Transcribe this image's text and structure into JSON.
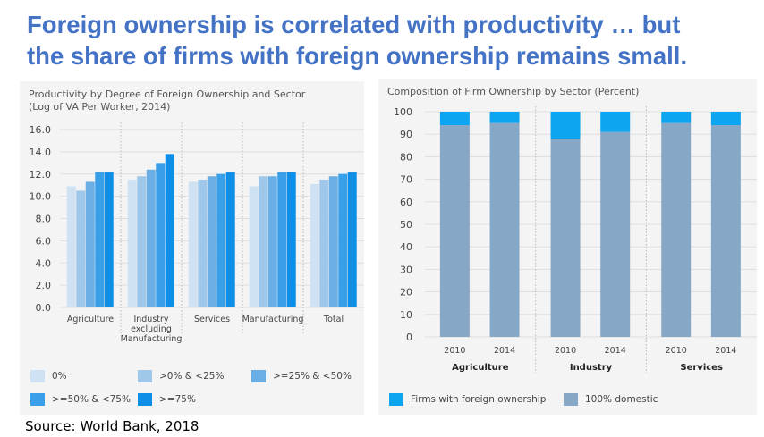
{
  "title": {
    "line1": "Foreign ownership is correlated with productivity … but",
    "line2": "the share of firms with foreign ownership remains small."
  },
  "source": "Source: World Bank, 2018",
  "chart_data": [
    {
      "type": "bar",
      "title_line1": "Productivity by Degree of Foreign Ownership and Sector",
      "title_line2": "(Log of VA Per Worker, 2014)",
      "categories": [
        "Agriculture",
        "Industry excluding Manufacturing",
        "Services",
        "Manufacturing",
        "Total"
      ],
      "category_label_lines": [
        [
          "Agriculture"
        ],
        [
          "Industry",
          "excluding",
          "Manufacturing"
        ],
        [
          "Services"
        ],
        [
          "Manufacturing"
        ],
        [
          "Total"
        ]
      ],
      "ylim": [
        0,
        16
      ],
      "yticks": [
        0,
        2,
        4,
        6,
        8,
        10,
        12,
        14,
        16
      ],
      "ytick_labels": [
        "0.0",
        "2.0",
        "4.0",
        "6.0",
        "8.0",
        "10.0",
        "12.0",
        "14.0",
        "16.0"
      ],
      "series": [
        {
          "name": "0%",
          "color": "#cfe2f3",
          "values": [
            10.9,
            11.5,
            11.3,
            10.9,
            11.1
          ]
        },
        {
          "name": ">0% & <25%",
          "color": "#9fc7ea",
          "values": [
            10.5,
            11.8,
            11.5,
            11.8,
            11.5
          ]
        },
        {
          "name": ">=25% & <50%",
          "color": "#6aaee6",
          "values": [
            11.3,
            12.4,
            11.8,
            11.8,
            11.8
          ]
        },
        {
          "name": ">=50% & <75%",
          "color": "#389fe8",
          "values": [
            12.2,
            13.0,
            12.0,
            12.2,
            12.0
          ]
        },
        {
          "name": ">=75%",
          "color": "#0e8ee6",
          "values": [
            12.2,
            13.8,
            12.2,
            12.2,
            12.2
          ]
        }
      ]
    },
    {
      "type": "bar",
      "stacked": true,
      "title": "Composition of Firm Ownership by Sector (Percent)",
      "groups": [
        "Agriculture",
        "Industry",
        "Services"
      ],
      "x_labels": [
        "2010",
        "2014",
        "2010",
        "2014",
        "2010",
        "2014"
      ],
      "ylim": [
        0,
        100
      ],
      "yticks": [
        0,
        10,
        20,
        30,
        40,
        50,
        60,
        70,
        80,
        90,
        100
      ],
      "series": [
        {
          "name": "100% domestic",
          "color": "#87a7c6",
          "values": [
            94,
            95,
            88,
            91,
            95,
            94
          ]
        },
        {
          "name": "Firms with foreign ownership",
          "color": "#0ea5f0",
          "values": [
            6,
            5,
            12,
            9,
            5,
            6
          ]
        }
      ],
      "legend_order": [
        "Firms with foreign ownership",
        "100% domestic"
      ]
    }
  ]
}
